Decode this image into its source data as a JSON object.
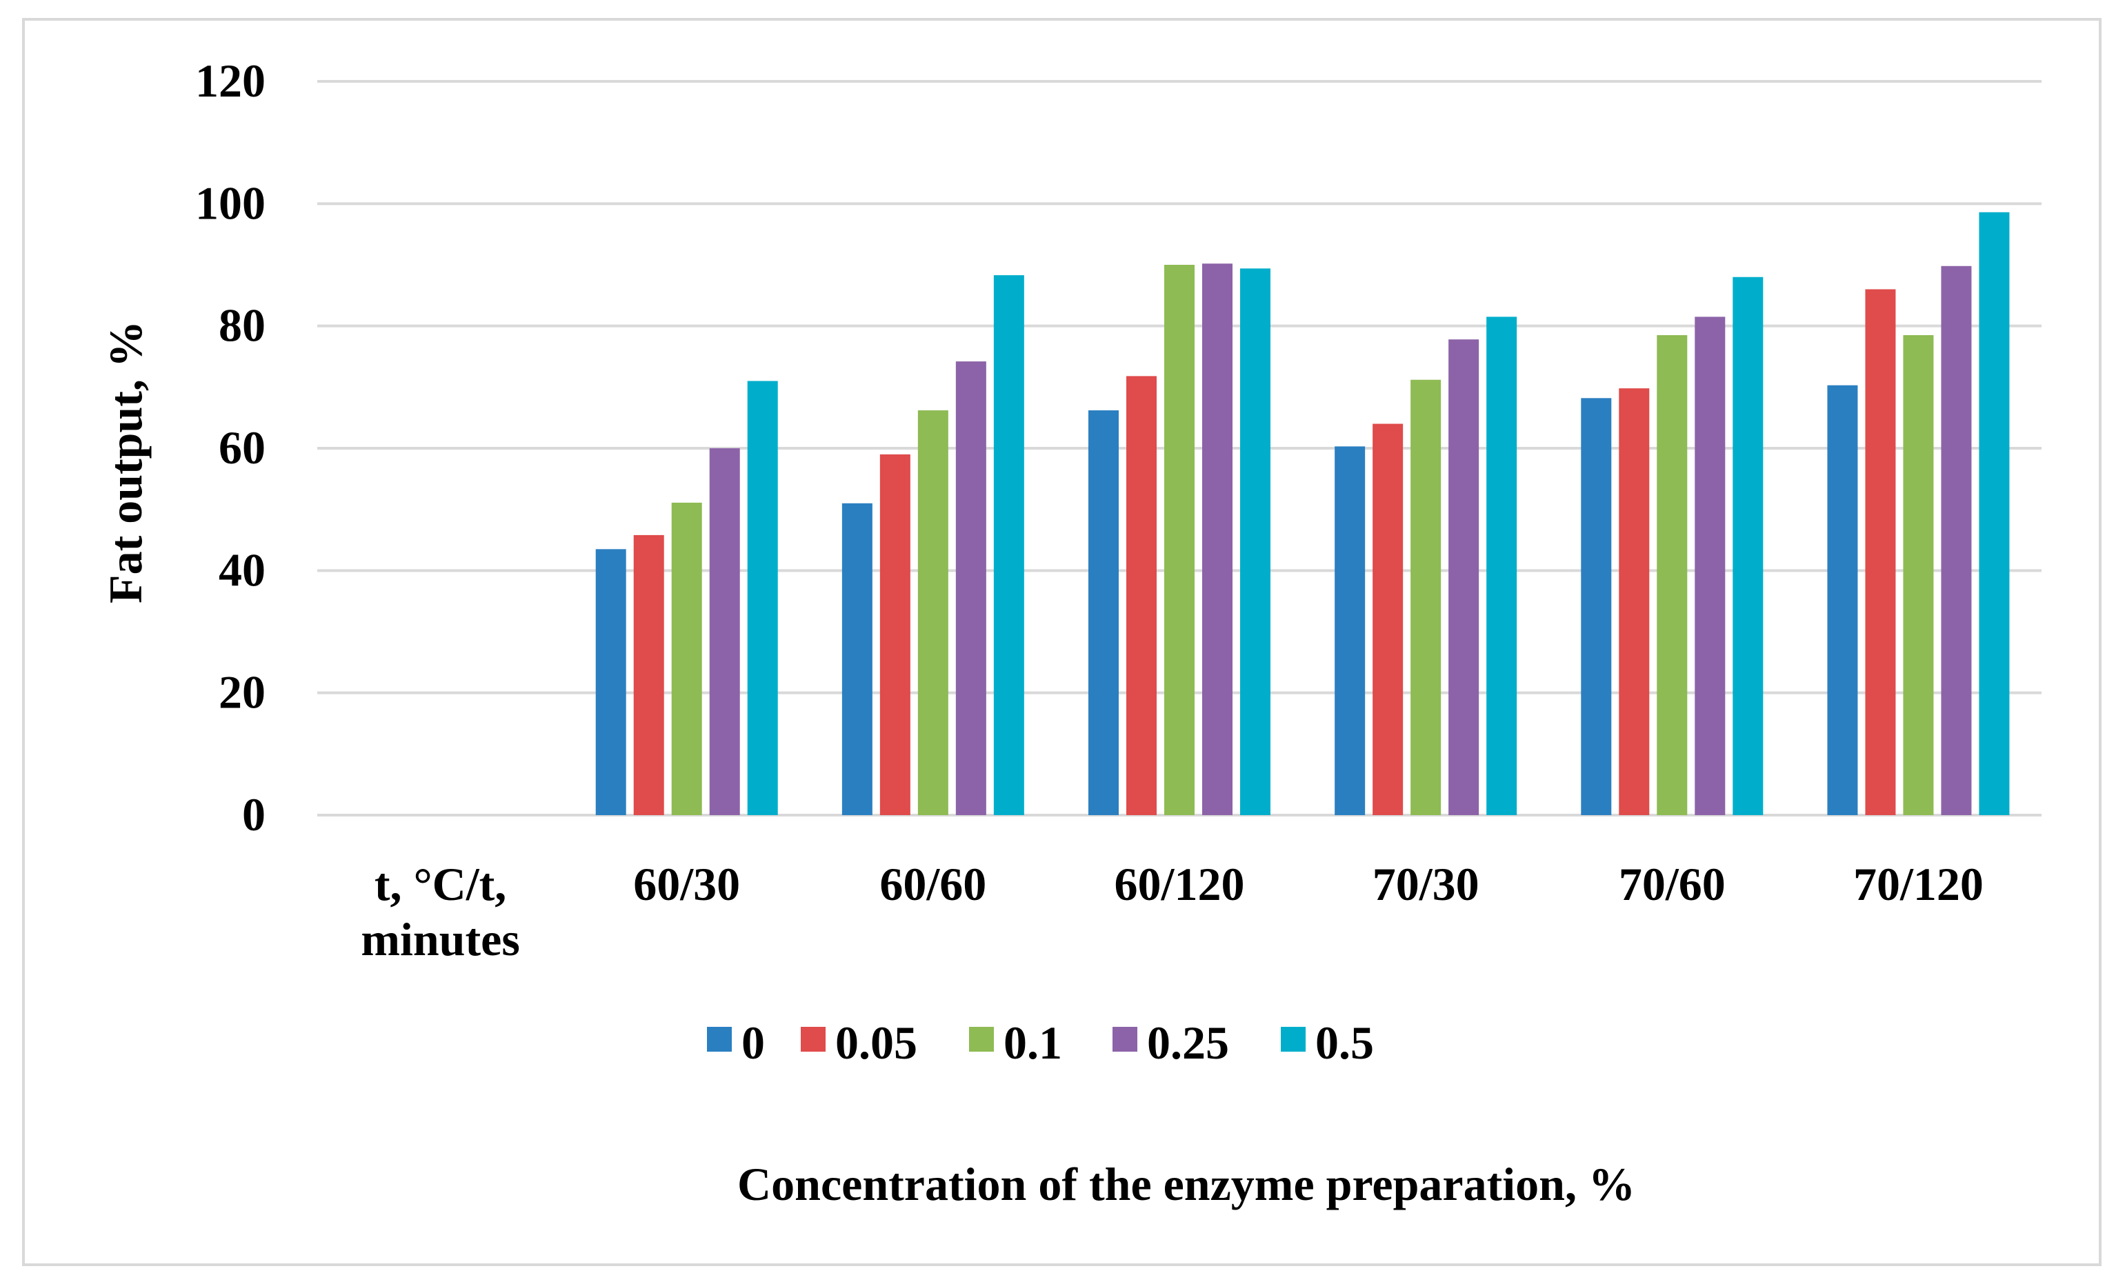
{
  "chart_data": {
    "type": "bar",
    "title": "",
    "xlabel": "Concentration of the enzyme preparation, %",
    "ylabel": "Fat output, %",
    "ylim": [
      0,
      120
    ],
    "yticks": [
      0,
      20,
      40,
      60,
      80,
      100,
      120
    ],
    "grid": true,
    "legend_position": "bottom",
    "categories": [
      "t, °C/t, minutes",
      "60/30",
      "60/60",
      "60/120",
      "70/30",
      "70/60",
      "70/120"
    ],
    "series": [
      {
        "name": "0",
        "color": "#2A7FC1",
        "values": [
          null,
          43.5,
          51.0,
          66.2,
          60.3,
          68.2,
          70.3
        ]
      },
      {
        "name": "0.05",
        "color": "#E04B4B",
        "values": [
          null,
          45.8,
          59.0,
          71.8,
          64.0,
          69.8,
          86.0
        ]
      },
      {
        "name": "0.1",
        "color": "#8EBB53",
        "values": [
          null,
          51.1,
          66.2,
          90.0,
          71.2,
          78.5,
          78.5
        ]
      },
      {
        "name": "0.25",
        "color": "#8C63A8",
        "values": [
          null,
          60.0,
          74.2,
          90.2,
          77.8,
          81.5,
          89.8
        ]
      },
      {
        "name": "0.5",
        "color": "#00AECB",
        "values": [
          null,
          71.0,
          88.3,
          89.4,
          81.5,
          88.0,
          98.6
        ]
      }
    ]
  }
}
